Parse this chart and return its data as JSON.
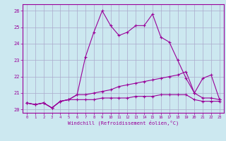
{
  "xlabel": "Windchill (Refroidissement éolien,°C)",
  "x": [
    0,
    1,
    2,
    3,
    4,
    5,
    6,
    7,
    8,
    9,
    10,
    11,
    12,
    13,
    14,
    15,
    16,
    17,
    18,
    19,
    20,
    21,
    22,
    23
  ],
  "line1": [
    20.4,
    20.3,
    20.4,
    20.1,
    20.5,
    20.6,
    20.9,
    23.2,
    24.7,
    26.0,
    25.1,
    24.5,
    24.7,
    25.1,
    25.1,
    25.8,
    24.4,
    24.1,
    23.0,
    21.9,
    21.0,
    21.9,
    22.1,
    20.6
  ],
  "line2": [
    20.4,
    20.3,
    20.4,
    20.1,
    20.5,
    20.6,
    20.9,
    20.9,
    21.0,
    21.1,
    21.2,
    21.4,
    21.5,
    21.6,
    21.7,
    21.8,
    21.9,
    22.0,
    22.1,
    22.3,
    21.0,
    20.7,
    20.7,
    20.6
  ],
  "line3": [
    20.4,
    20.3,
    20.4,
    20.1,
    20.5,
    20.6,
    20.6,
    20.6,
    20.6,
    20.7,
    20.7,
    20.7,
    20.7,
    20.8,
    20.8,
    20.8,
    20.9,
    20.9,
    20.9,
    20.9,
    20.6,
    20.5,
    20.5,
    20.5
  ],
  "ylim": [
    19.8,
    26.4
  ],
  "yticks": [
    20,
    21,
    22,
    23,
    24,
    25,
    26
  ],
  "xticks": [
    0,
    1,
    2,
    3,
    4,
    5,
    6,
    7,
    8,
    9,
    10,
    11,
    12,
    13,
    14,
    15,
    16,
    17,
    18,
    19,
    20,
    21,
    22,
    23
  ],
  "line_color": "#990099",
  "bg_color": "#cce8f0",
  "grid_color": "#aaaacc"
}
